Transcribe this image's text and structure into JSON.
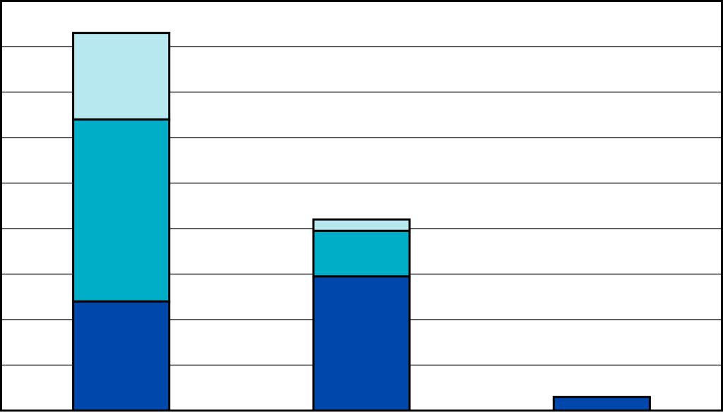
{
  "chart_data": {
    "type": "bar",
    "stacked": true,
    "categories": [
      "",
      "",
      ""
    ],
    "series": [
      {
        "values": [
          2.4,
          2.95,
          0.3
        ],
        "color": "#0047ab"
      },
      {
        "values": [
          4.0,
          1.0,
          0.0
        ],
        "color": "#00aec8"
      },
      {
        "values": [
          1.9,
          0.25,
          0.0
        ],
        "color": "#b8e8ef"
      }
    ],
    "ylim": [
      0,
      9
    ],
    "grid": true,
    "legend": "none",
    "title": "",
    "xlabel": "",
    "ylabel": ""
  }
}
